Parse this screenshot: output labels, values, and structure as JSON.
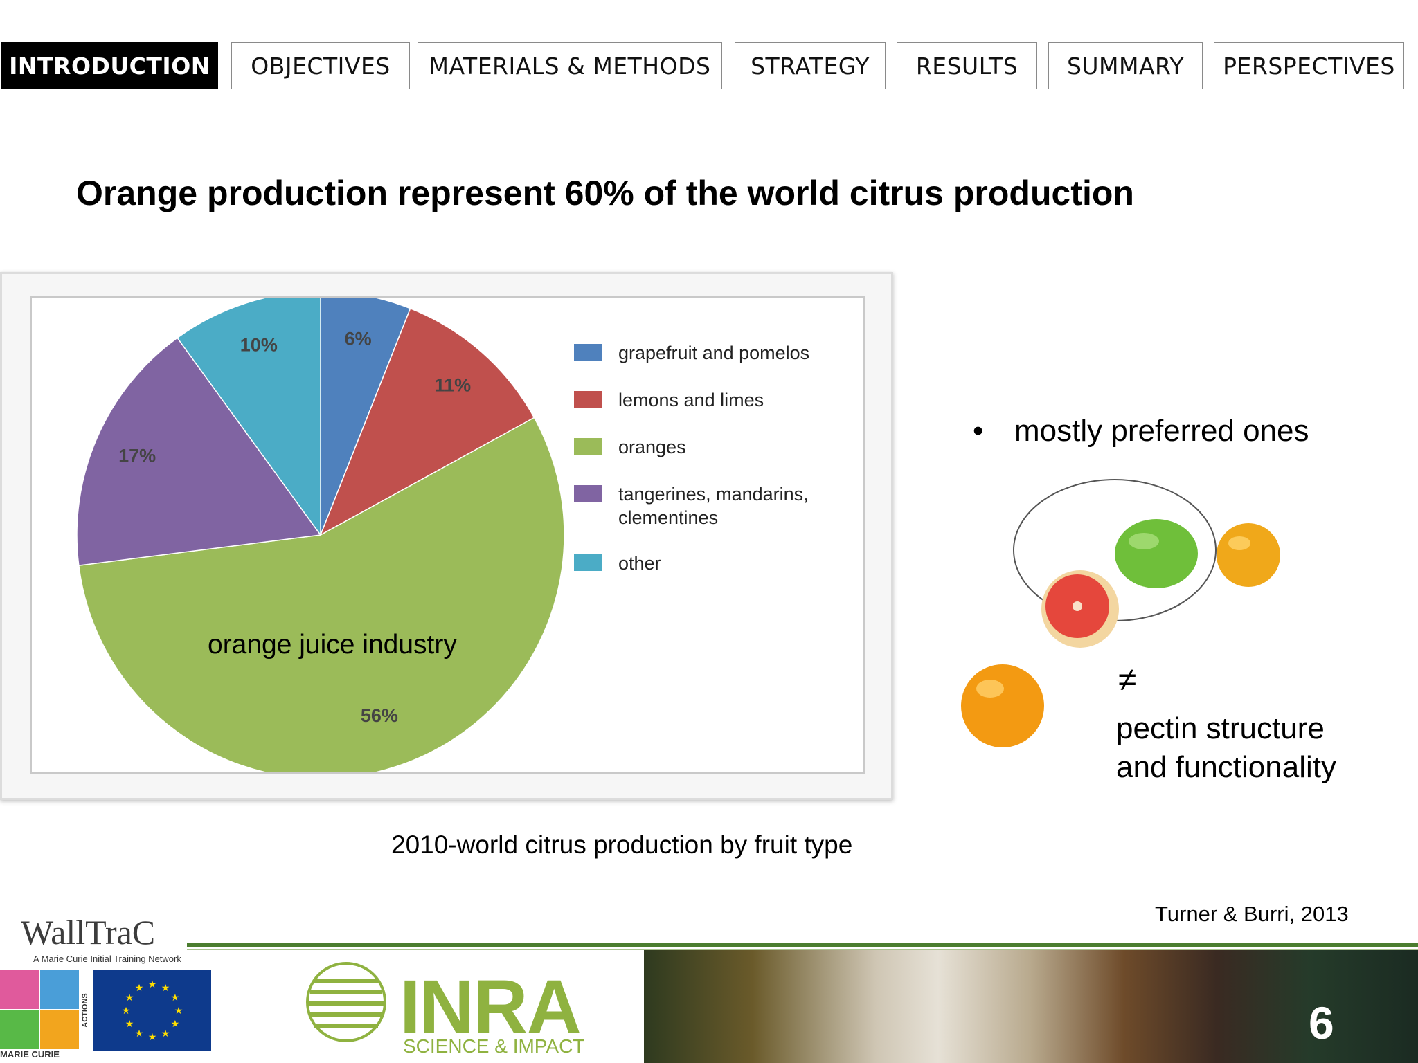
{
  "nav": {
    "tabs": [
      {
        "label": "INTRODUCTION",
        "active": true
      },
      {
        "label": "OBJECTIVES",
        "active": false
      },
      {
        "label": "MATERIALS & METHODS",
        "active": false
      },
      {
        "label": "STRATEGY",
        "active": false
      },
      {
        "label": "RESULTS",
        "active": false
      },
      {
        "label": "SUMMARY",
        "active": false
      },
      {
        "label": "PERSPECTIVES",
        "active": false
      }
    ]
  },
  "headline": "Orange production represent 60% of the world citrus production",
  "chart_data": {
    "type": "pie",
    "title": "",
    "slices": [
      {
        "label": "grapefruit and pomelos",
        "value": 6,
        "value_label": "6%",
        "color": "#4f81bd"
      },
      {
        "label": "lemons and limes",
        "value": 11,
        "value_label": "11%",
        "color": "#c0504d"
      },
      {
        "label": "oranges",
        "value": 56,
        "value_label": "56%",
        "color": "#9bbb59"
      },
      {
        "label": "tangerines, mandarins, clementines",
        "value": 17,
        "value_label": "17%",
        "color": "#8064a2"
      },
      {
        "label": "other",
        "value": 10,
        "value_label": "10%",
        "color": "#4bacc6"
      }
    ],
    "legend_position": "right",
    "annotation": "orange juice industry"
  },
  "caption": "2010-world citrus production by fruit type",
  "bullet": "mostly preferred ones",
  "not_equal_symbol": "≠",
  "pectin_lines": [
    "pectin structure",
    "and functionality"
  ],
  "citation": "Turner & Burri, 2013",
  "footer": {
    "walltrac": "WallTraC",
    "walltrac_sub": "A Marie Curie Initial Training Network",
    "marie_curie": "MARIE CURIE",
    "actions": "ACTIONS",
    "inra": "INRA",
    "inra_sub": "SCIENCE & IMPACT",
    "page_number": "6"
  }
}
